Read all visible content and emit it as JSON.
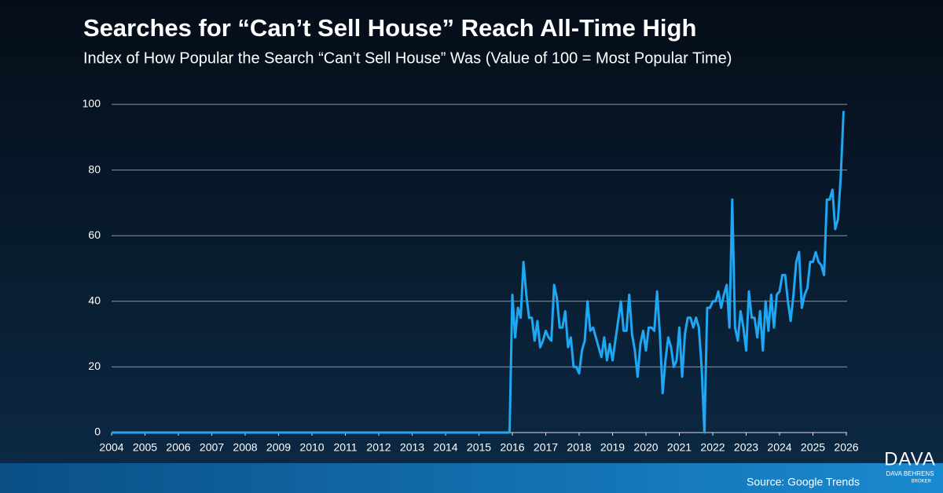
{
  "chart_data": {
    "type": "line",
    "title": "Searches for “Can’t Sell House” Reach All-Time High",
    "subtitle": "Index of How Popular the Search “Can’t Sell House” Was (Value of 100 = Most Popular Time)",
    "source": "Source: Google Trends",
    "logo": {
      "name": "DAVA",
      "line1": "DAVA BEHRENS",
      "line2": "BROKER"
    },
    "color": "#1ea7f2",
    "xlim": [
      2004,
      2026
    ],
    "xticks": [
      2004,
      2005,
      2006,
      2007,
      2008,
      2009,
      2010,
      2011,
      2012,
      2013,
      2014,
      2015,
      2016,
      2017,
      2018,
      2019,
      2020,
      2021,
      2022,
      2023,
      2024,
      2025,
      2026
    ],
    "ylim": [
      0,
      100
    ],
    "yticks": [
      0,
      20,
      40,
      60,
      80,
      100
    ],
    "grid": true,
    "x": [
      2004,
      2015.917,
      2016,
      2016.083,
      2016.167,
      2016.25,
      2016.333,
      2016.417,
      2016.5,
      2016.583,
      2016.667,
      2016.75,
      2016.833,
      2016.917,
      2017,
      2017.083,
      2017.167,
      2017.25,
      2017.333,
      2017.417,
      2017.5,
      2017.583,
      2017.667,
      2017.75,
      2017.833,
      2017.917,
      2018,
      2018.083,
      2018.167,
      2018.25,
      2018.333,
      2018.417,
      2018.5,
      2018.583,
      2018.667,
      2018.75,
      2018.833,
      2018.917,
      2019,
      2019.083,
      2019.167,
      2019.25,
      2019.333,
      2019.417,
      2019.5,
      2019.583,
      2019.667,
      2019.75,
      2019.833,
      2019.917,
      2020,
      2020.083,
      2020.167,
      2020.25,
      2020.333,
      2020.417,
      2020.5,
      2020.583,
      2020.667,
      2020.75,
      2020.833,
      2020.917,
      2021,
      2021.083,
      2021.167,
      2021.25,
      2021.333,
      2021.417,
      2021.5,
      2021.583,
      2021.667,
      2021.75,
      2021.833,
      2021.917,
      2022,
      2022.083,
      2022.167,
      2022.25,
      2022.333,
      2022.417,
      2022.5,
      2022.583,
      2022.667,
      2022.75,
      2022.833,
      2022.917,
      2023,
      2023.083,
      2023.167,
      2023.25,
      2023.333,
      2023.417,
      2023.5,
      2023.583,
      2023.667,
      2023.75,
      2023.833,
      2023.917,
      2024,
      2024.083,
      2024.167,
      2024.25,
      2024.333,
      2024.417,
      2024.5,
      2024.583,
      2024.667,
      2024.75,
      2024.833,
      2024.917,
      2025,
      2025.083,
      2025.167,
      2025.25,
      2025.333,
      2025.417,
      2025.5,
      2025.583,
      2025.667,
      2025.75,
      2025.833,
      2025.917
    ],
    "values": [
      0,
      0,
      42,
      29,
      38,
      35,
      52,
      42,
      35,
      35,
      28,
      34,
      26,
      28,
      31,
      29,
      28,
      45,
      41,
      32,
      32,
      37,
      26,
      29,
      20,
      20,
      18,
      25,
      28,
      40,
      31,
      32,
      29,
      26,
      23,
      29,
      22,
      27,
      22,
      28,
      34,
      40,
      31,
      31,
      42,
      30,
      25,
      17,
      27,
      31,
      25,
      32,
      32,
      31,
      43,
      30,
      12,
      22,
      29,
      26,
      20,
      22,
      32,
      17,
      30,
      35,
      35,
      32,
      35,
      32,
      20,
      0,
      38,
      38,
      40,
      40,
      43,
      38,
      42,
      45,
      32,
      71,
      32,
      28,
      37,
      32,
      25,
      43,
      35,
      35,
      29,
      37,
      25,
      40,
      31,
      42,
      32,
      42,
      43,
      48,
      48,
      40,
      34,
      42,
      52,
      55,
      38,
      42,
      44,
      52,
      52,
      55,
      52,
      51,
      48,
      71,
      71,
      74,
      62,
      65,
      78,
      98
    ]
  }
}
